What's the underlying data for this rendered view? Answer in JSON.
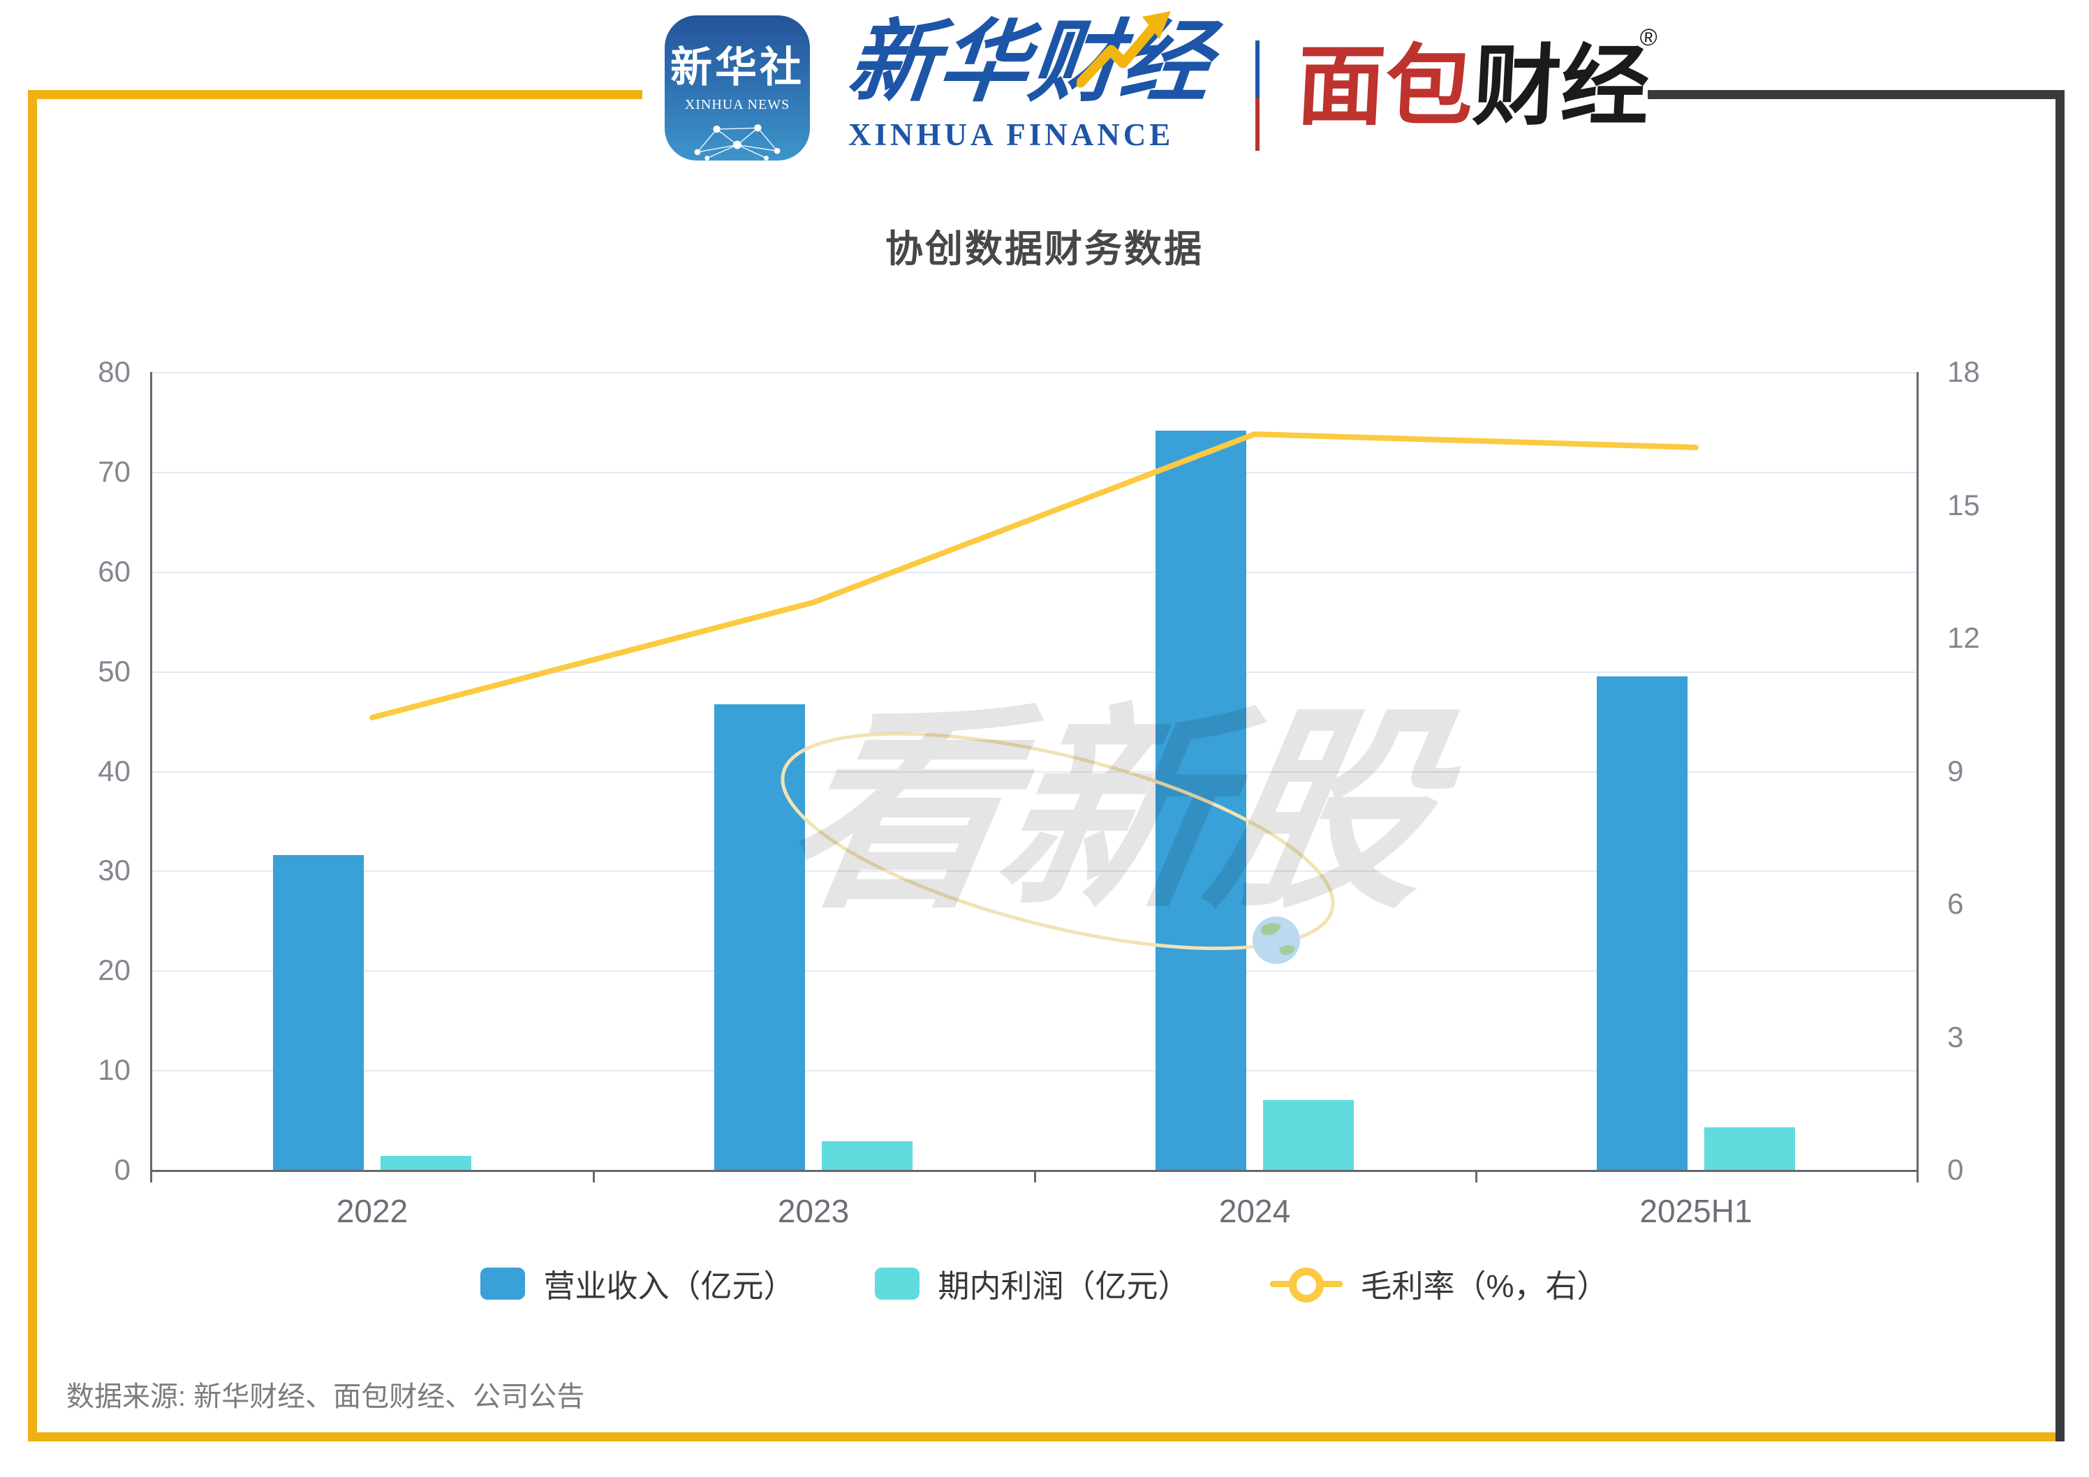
{
  "header": {
    "xinhua_icon": {
      "line1": "新华社",
      "line2": "XINHUA NEWS"
    },
    "xinhua_finance": {
      "cn": "新华财经",
      "en": "XINHUA FINANCE"
    },
    "mianbao": {
      "cn_red": "面包",
      "cn_black": "财经",
      "reg": "®"
    }
  },
  "title": "协创数据财务数据",
  "watermark": "看新股",
  "source": "数据来源: 新华财经、面包财经、公司公告",
  "colors": {
    "frame_yellow": "#EDB112",
    "frame_dark": "#3A3A3C",
    "revenue_blue": "#39A0D8",
    "profit_teal": "#60DCDF",
    "margin_yellow": "#FBCA41",
    "axis_gray": "#66686D",
    "grid_gray": "#E3E8F5"
  },
  "chart_data": {
    "type": "bar",
    "subtype": "bar+line combo, dual axis",
    "title": "协创数据财务数据",
    "categories": [
      "2022",
      "2023",
      "2024",
      "2025H1"
    ],
    "series": [
      {
        "name": "营业收入（亿元）",
        "type": "bar",
        "axis": "left",
        "color": "#39A0D8",
        "values": [
          31.6,
          46.7,
          74.1,
          49.5
        ]
      },
      {
        "name": "期内利润（亿元）",
        "type": "bar",
        "axis": "left",
        "color": "#60DCDF",
        "values": [
          1.4,
          2.9,
          7.0,
          4.3
        ]
      },
      {
        "name": "毛利率（%，右）",
        "type": "line",
        "axis": "right",
        "color": "#FBCA41",
        "values": [
          10.2,
          12.8,
          16.6,
          16.3
        ]
      }
    ],
    "left_axis": {
      "min": 0,
      "max": 80,
      "ticks": [
        0,
        10,
        20,
        30,
        40,
        50,
        60,
        70,
        80
      ]
    },
    "right_axis": {
      "min": 0,
      "max": 18,
      "ticks": [
        0,
        3,
        6,
        9,
        12,
        15,
        18
      ]
    },
    "grid": true,
    "legend_position": "bottom",
    "xlabel": "",
    "ylabel": ""
  }
}
